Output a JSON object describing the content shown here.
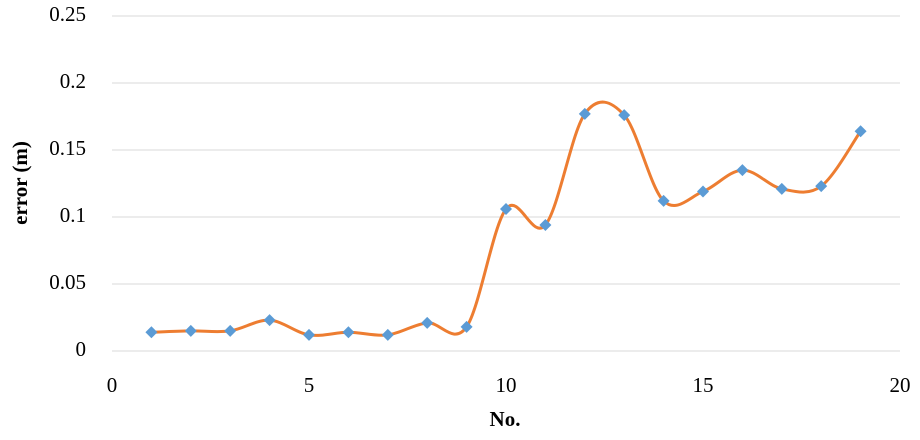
{
  "chart_data": {
    "type": "line",
    "x_label": "No.",
    "y_label": "error (m)",
    "x": [
      1,
      2,
      3,
      4,
      5,
      6,
      7,
      8,
      9,
      10,
      11,
      12,
      13,
      14,
      15,
      16,
      17,
      18,
      19
    ],
    "series": [
      {
        "color": "#ed7d31",
        "marker_color": "#5b9bd5",
        "values": [
          0.014,
          0.015,
          0.015,
          0.023,
          0.012,
          0.014,
          0.012,
          0.021,
          0.018,
          0.106,
          0.094,
          0.177,
          0.176,
          0.112,
          0.119,
          0.135,
          0.121,
          0.123,
          0.164
        ]
      }
    ],
    "xlim": [
      0,
      20
    ],
    "xticks": [
      0,
      5,
      10,
      15,
      20
    ],
    "ylim": [
      0,
      0.25
    ],
    "yticks": [
      0,
      0.05,
      0.1,
      0.15,
      0.2,
      0.25
    ],
    "grid": true,
    "smooth": true
  }
}
